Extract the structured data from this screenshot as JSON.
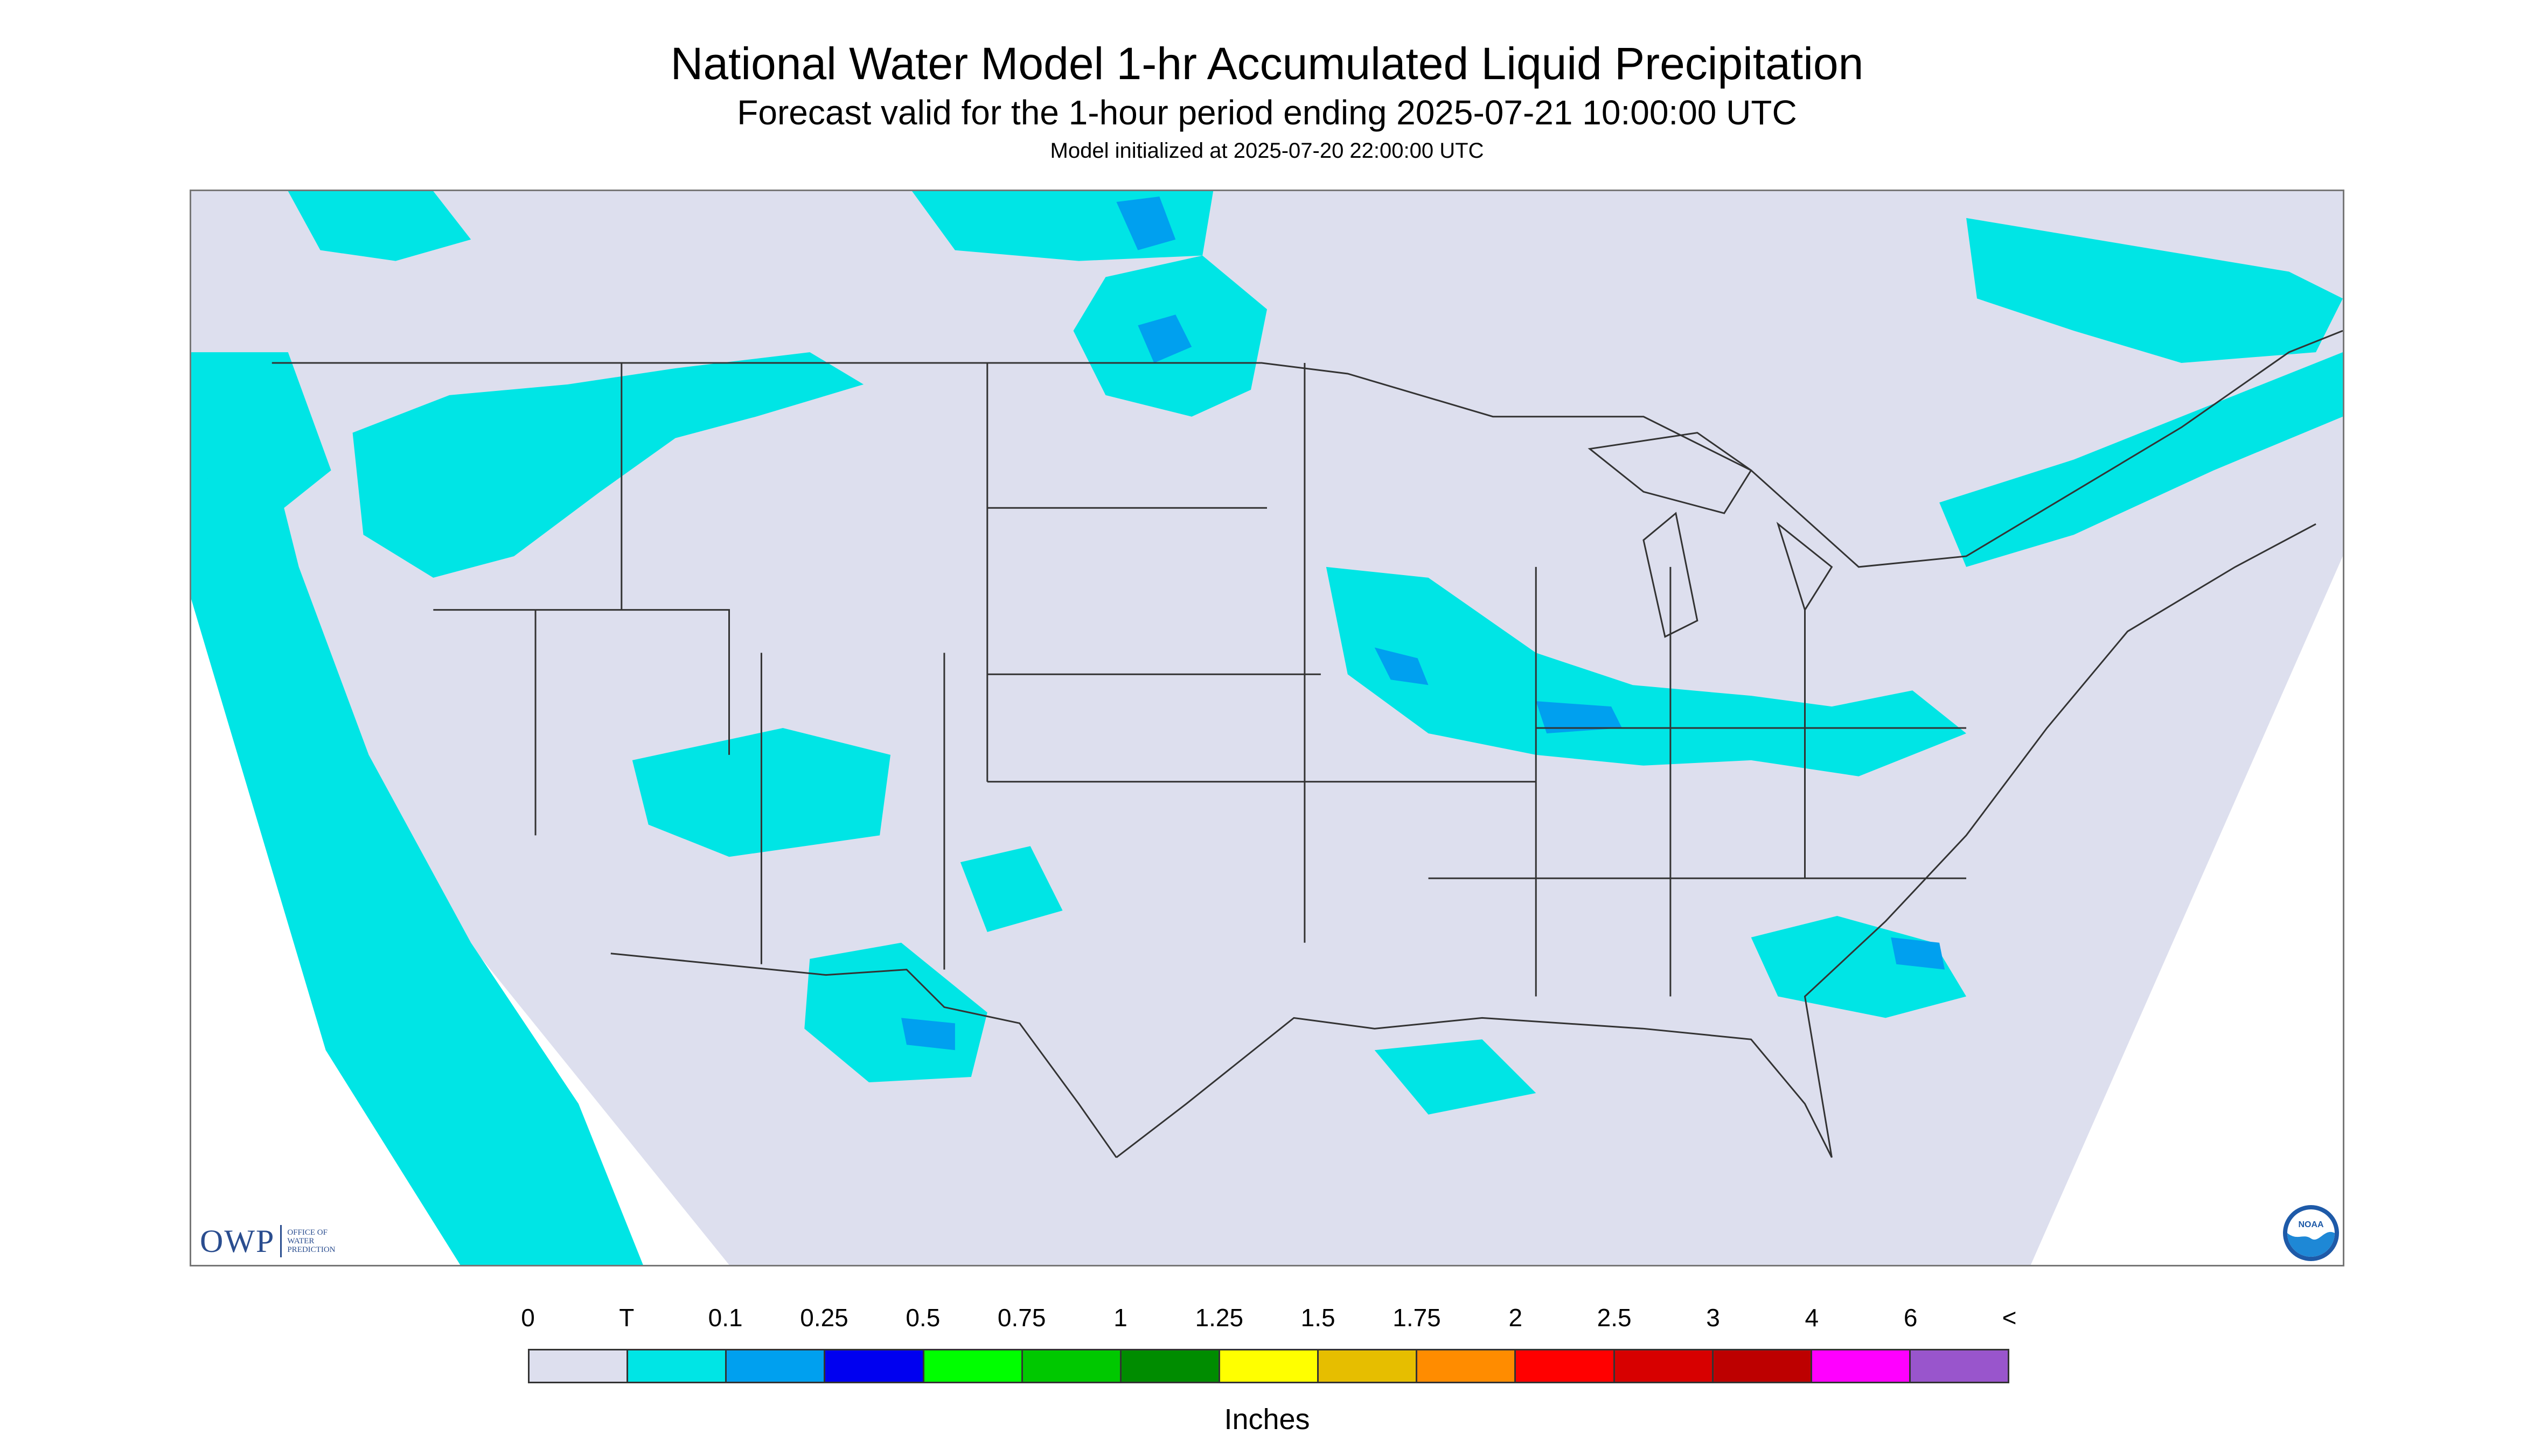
{
  "header": {
    "title": "National Water Model 1-hr Accumulated Liquid Precipitation",
    "subtitle": "Forecast valid for the 1-hour period ending 2025-07-21 10:00:00 UTC",
    "init": "Model initialized at 2025-07-20 22:00:00 UTC"
  },
  "legend": {
    "labels": [
      "0",
      "T",
      "0.1",
      "0.25",
      "0.5",
      "0.75",
      "1",
      "1.25",
      "1.5",
      "1.75",
      "2",
      "2.5",
      "3",
      "4",
      "6",
      "<"
    ],
    "colors": [
      "#dddfee",
      "#00e5e5",
      "#00a0ef",
      "#0000f0",
      "#00ff00",
      "#00c800",
      "#008c00",
      "#ffff00",
      "#e6be00",
      "#ff8c00",
      "#ff0000",
      "#d70000",
      "#bd0000",
      "#ff00ff",
      "#9955cc"
    ],
    "unit": "Inches"
  },
  "logos": {
    "owp": {
      "text": "OWP",
      "small": [
        "OFFICE OF",
        "WATER",
        "PREDICTION"
      ]
    },
    "noaa": {
      "text": "NOAA"
    }
  },
  "map": {
    "background_color": "#dddfee",
    "outside_domain_color": "#ffffff",
    "precip_color_trace": "#00e5e5",
    "precip_color_heavier": "#00a0ef"
  }
}
